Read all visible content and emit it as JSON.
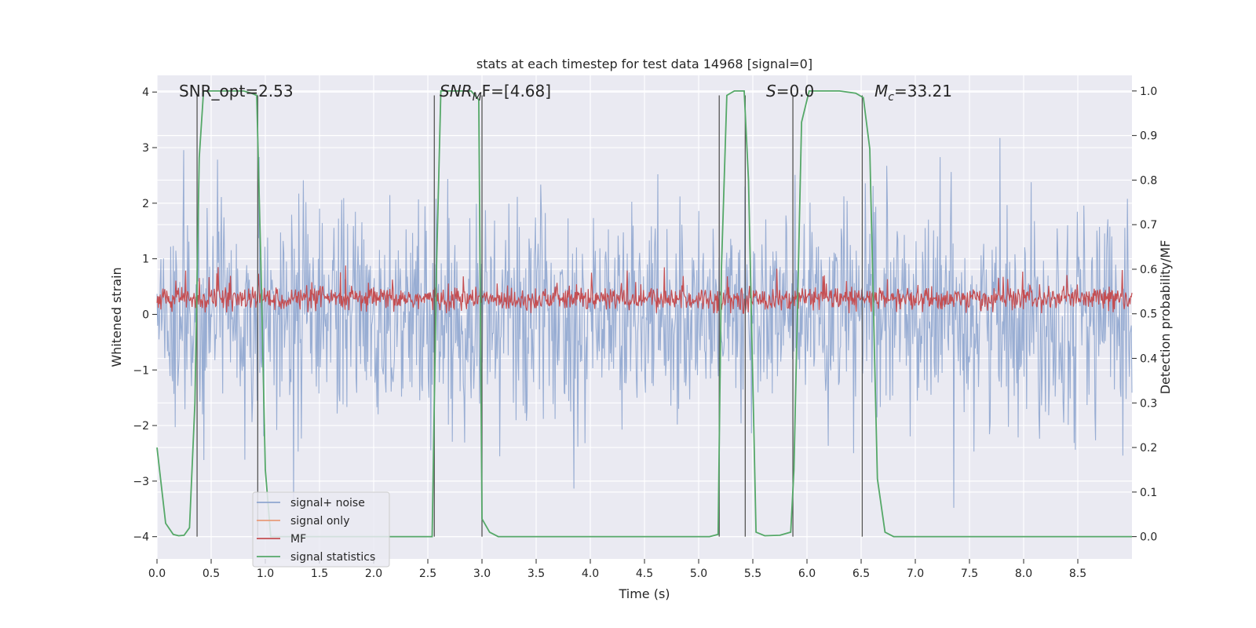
{
  "chart_data": {
    "type": "line",
    "title": "stats at each timestep for test data 14968 [signal=0]",
    "xlabel": "Time (s)",
    "ylabel": "Whitened strain",
    "y2label": "Detection probability/MF",
    "xlim": [
      0,
      9.0
    ],
    "ylim": [
      -4.4,
      4.3
    ],
    "y2lim": [
      -0.05,
      1.035
    ],
    "xticks": [
      0.0,
      0.5,
      1.0,
      1.5,
      2.0,
      2.5,
      3.0,
      3.5,
      4.0,
      4.5,
      5.0,
      5.5,
      6.0,
      6.5,
      7.0,
      7.5,
      8.0,
      8.5
    ],
    "xtick_labels": [
      "0.0",
      "0.5",
      "1.0",
      "1.5",
      "2.0",
      "2.5",
      "3.0",
      "3.5",
      "4.0",
      "4.5",
      "5.0",
      "5.5",
      "6.0",
      "6.5",
      "7.0",
      "7.5",
      "8.0",
      "8.5"
    ],
    "yticks": [
      -4,
      -3,
      -2,
      -1,
      0,
      1,
      2,
      3,
      4
    ],
    "ytick_labels": [
      "−4",
      "−3",
      "−2",
      "−1",
      "0",
      "1",
      "2",
      "3",
      "4"
    ],
    "y2ticks": [
      0.0,
      0.1,
      0.2,
      0.3,
      0.4,
      0.5,
      0.6,
      0.7,
      0.8,
      0.9,
      1.0
    ],
    "y2tick_labels": [
      "0.0",
      "0.1",
      "0.2",
      "0.3",
      "0.4",
      "0.5",
      "0.6",
      "0.7",
      "0.8",
      "0.9",
      "1.0"
    ],
    "grid": true,
    "legend_position": "lower-left",
    "annotations": {
      "snr_opt": "SNR_opt=2.53",
      "snr_mf_italic": "SNR",
      "snr_mf_sub": "M",
      "snr_mf_rest": "F=[4.68]",
      "s_label": "S",
      "s_rest": "=0.0",
      "mc_label": "M",
      "mc_sub": "c",
      "mc_rest": "=33.21"
    },
    "series": [
      {
        "name": "signal+ noise",
        "color": "#8fa6cf",
        "kind": "noise",
        "typical_range": [
          -1.6,
          1.6
        ],
        "spike_range": [
          -3.6,
          3.5
        ]
      },
      {
        "name": "signal only",
        "color": "#e89b7a",
        "kind": "flat",
        "values": []
      },
      {
        "name": "MF",
        "color": "#c44e52",
        "kind": "noise-band",
        "typical_range": [
          0.05,
          0.55
        ],
        "spike_max": 0.9
      },
      {
        "name": "signal statistics",
        "color": "#55a868",
        "axis": "y2",
        "x": [
          0.0,
          0.08,
          0.15,
          0.2,
          0.25,
          0.3,
          0.35,
          0.39,
          0.43,
          0.5,
          0.6,
          0.7,
          0.8,
          0.87,
          0.92,
          0.96,
          1.0,
          1.05,
          1.1,
          2.5,
          2.54,
          2.58,
          2.62,
          2.7,
          2.8,
          2.9,
          2.97,
          3.0,
          3.07,
          3.15,
          5.1,
          5.18,
          5.21,
          5.26,
          5.33,
          5.42,
          5.46,
          5.53,
          5.61,
          5.75,
          5.85,
          5.88,
          5.95,
          6.02,
          6.1,
          6.3,
          6.45,
          6.52,
          6.58,
          6.65,
          6.72,
          6.8,
          9.0
        ],
        "y": [
          0.2,
          0.03,
          0.005,
          0.002,
          0.003,
          0.02,
          0.3,
          0.85,
          1.0,
          1.0,
          1.0,
          1.0,
          1.0,
          0.995,
          0.99,
          0.6,
          0.15,
          0.0,
          0.0,
          0.0,
          0.0,
          0.6,
          1.0,
          1.0,
          1.0,
          1.0,
          0.98,
          0.04,
          0.01,
          0.0,
          0.0,
          0.005,
          0.6,
          0.99,
          1.0,
          1.0,
          0.8,
          0.01,
          0.002,
          0.003,
          0.01,
          0.15,
          0.93,
          1.0,
          1.0,
          1.0,
          0.995,
          0.985,
          0.87,
          0.13,
          0.01,
          0.0,
          0.0
        ]
      }
    ],
    "vlines": [
      0.37,
      0.93,
      2.56,
      3.0,
      5.19,
      5.43,
      5.87,
      6.51
    ]
  }
}
